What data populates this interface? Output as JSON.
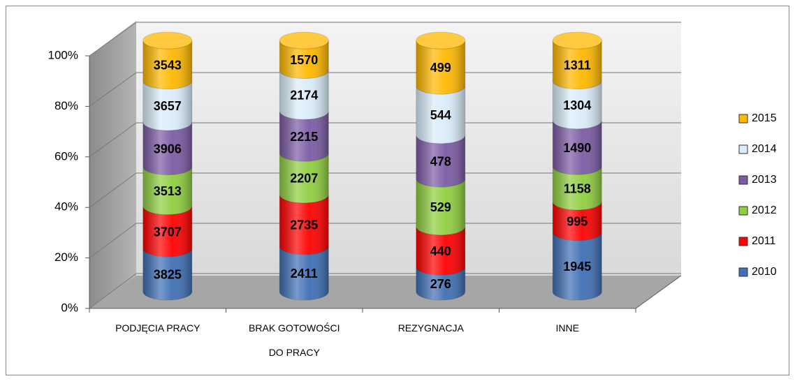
{
  "chart_data": {
    "type": "bar",
    "stacking": "percent",
    "categories": [
      "PODJĘCIA PRACY",
      "BRAK GOTOWOŚCI DO PRACY",
      "REZYGNACJA",
      "INNE"
    ],
    "series": [
      {
        "name": "2010",
        "color": "#3f6fb5",
        "values": [
          3825,
          2411,
          276,
          1945
        ]
      },
      {
        "name": "2011",
        "color": "#ff0000",
        "values": [
          3707,
          2735,
          440,
          995
        ]
      },
      {
        "name": "2012",
        "color": "#8fce3f",
        "values": [
          3513,
          2207,
          529,
          1158
        ]
      },
      {
        "name": "2013",
        "color": "#7c5ba5",
        "values": [
          3906,
          2215,
          478,
          1490
        ]
      },
      {
        "name": "2014",
        "color": "#d9ecfa",
        "values": [
          3657,
          2174,
          544,
          1304
        ]
      },
      {
        "name": "2015",
        "color": "#ffb800",
        "values": [
          3543,
          1570,
          499,
          1311
        ]
      }
    ],
    "ylim": [
      0,
      100
    ],
    "yticks": [
      {
        "value": 0,
        "label": "0%"
      },
      {
        "value": 20,
        "label": "20%"
      },
      {
        "value": 40,
        "label": "40%"
      },
      {
        "value": 60,
        "label": "60%"
      },
      {
        "value": 80,
        "label": "80%"
      },
      {
        "value": 100,
        "label": "100%"
      }
    ],
    "grid": true,
    "legend": "right"
  }
}
